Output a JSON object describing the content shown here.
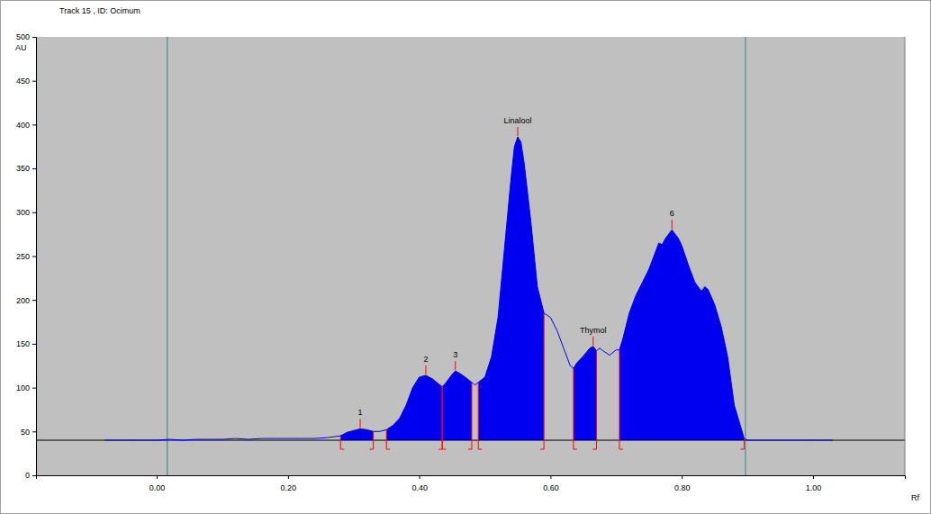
{
  "chart_data": {
    "type": "area",
    "title": "Track 15 , ID: Ocimum",
    "y_label": "AU",
    "x_label": "Rf",
    "xlim": [
      -0.184,
      1.14
    ],
    "ylim": [
      0,
      500
    ],
    "xticks": [
      {
        "value": 0,
        "label": "0.00"
      },
      {
        "value": 0.2,
        "label": "0.20"
      },
      {
        "value": 0.4,
        "label": "0.40"
      },
      {
        "value": 0.6,
        "label": "0.60"
      },
      {
        "value": 0.8,
        "label": "0.80"
      },
      {
        "value": 1,
        "label": "1.00"
      }
    ],
    "yticks": [
      0,
      50,
      100,
      150,
      200,
      250,
      300,
      350,
      400,
      450,
      500
    ],
    "color": "#0000f0",
    "baseline": 40,
    "vertical_lines": [
      0.016,
      0.897
    ],
    "x": [
      -0.08,
      -0.04,
      0.0,
      0.02,
      0.04,
      0.06,
      0.08,
      0.1,
      0.12,
      0.14,
      0.16,
      0.18,
      0.2,
      0.22,
      0.24,
      0.26,
      0.27,
      0.28,
      0.29,
      0.3,
      0.31,
      0.32,
      0.33,
      0.34,
      0.35,
      0.36,
      0.37,
      0.38,
      0.39,
      0.4,
      0.41,
      0.42,
      0.43,
      0.435,
      0.44,
      0.45,
      0.455,
      0.46,
      0.47,
      0.48,
      0.485,
      0.49,
      0.5,
      0.51,
      0.52,
      0.53,
      0.54,
      0.545,
      0.55,
      0.555,
      0.56,
      0.57,
      0.58,
      0.59,
      0.6,
      0.61,
      0.62,
      0.63,
      0.635,
      0.64,
      0.65,
      0.66,
      0.665,
      0.67,
      0.675,
      0.68,
      0.69,
      0.7,
      0.705,
      0.71,
      0.72,
      0.73,
      0.74,
      0.75,
      0.76,
      0.765,
      0.77,
      0.775,
      0.78,
      0.785,
      0.79,
      0.795,
      0.8,
      0.81,
      0.82,
      0.83,
      0.835,
      0.84,
      0.85,
      0.86,
      0.87,
      0.88,
      0.89,
      0.895,
      0.9,
      0.95,
      1.0,
      1.03
    ],
    "values": [
      40,
      40,
      40,
      41,
      40,
      41,
      41,
      41,
      42,
      41,
      42,
      42,
      42,
      42,
      42,
      43,
      44,
      45,
      49,
      51,
      53,
      52,
      50,
      50,
      52,
      57,
      65,
      80,
      100,
      112,
      114,
      110,
      104,
      101,
      105,
      115,
      119,
      117,
      112,
      106,
      103,
      106,
      112,
      135,
      180,
      260,
      340,
      375,
      386,
      380,
      355,
      290,
      215,
      185,
      180,
      165,
      145,
      125,
      122,
      128,
      136,
      145,
      147,
      142,
      145,
      142,
      137,
      143,
      143,
      155,
      185,
      205,
      220,
      235,
      255,
      265,
      263,
      270,
      275,
      280,
      275,
      270,
      262,
      240,
      220,
      210,
      215,
      212,
      195,
      170,
      135,
      80,
      55,
      42,
      40,
      40,
      40,
      40
    ],
    "peaks": [
      {
        "name": "1",
        "start": 0.28,
        "max": 0.31,
        "end": 0.33
      },
      {
        "name": "2",
        "start": 0.35,
        "max": 0.41,
        "end": 0.435
      },
      {
        "name": "3",
        "start": 0.435,
        "max": 0.455,
        "end": 0.48
      },
      {
        "name": "Linalool",
        "start": 0.49,
        "max": 0.55,
        "end": 0.59
      },
      {
        "name": "Thymol",
        "start": 0.635,
        "max": 0.665,
        "end": 0.67
      },
      {
        "name": "6",
        "start": 0.705,
        "max": 0.785,
        "end": 0.895
      }
    ]
  }
}
